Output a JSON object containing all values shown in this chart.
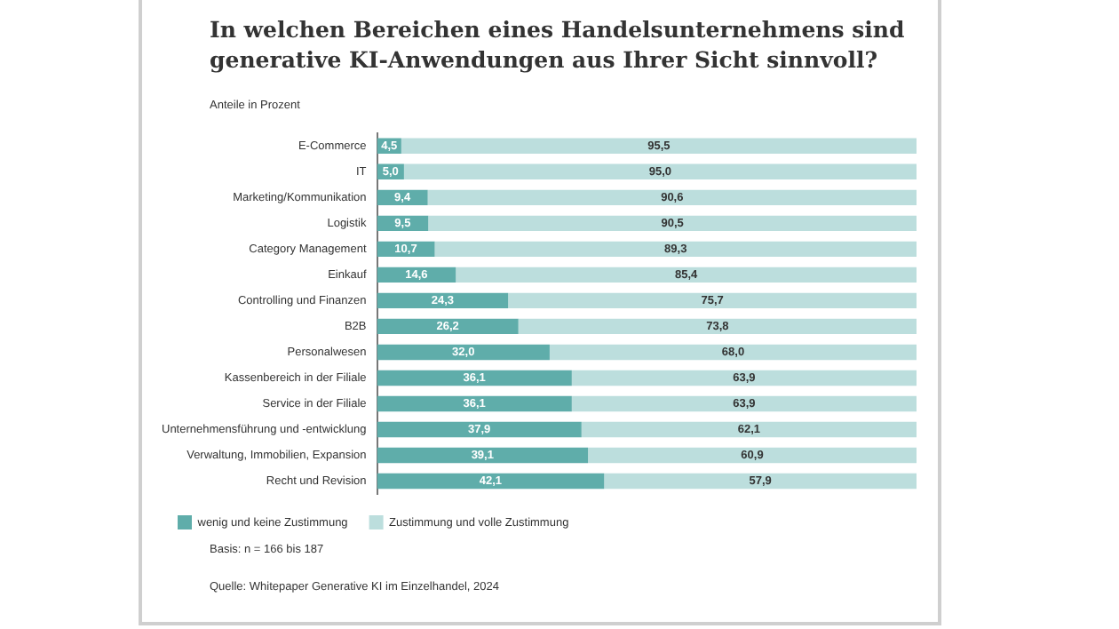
{
  "chart_data": {
    "type": "bar",
    "orientation": "horizontal",
    "stacked": true,
    "title": "In welchen Bereichen eines Handelsunternehmens sind generative KI-Anwendungen aus Ihrer Sicht sinnvoll?",
    "subtitle": "Anteile in Prozent",
    "categories": [
      "E-Commerce",
      "IT",
      "Marketing/Kommunikation",
      "Logistik",
      "Category Management",
      "Einkauf",
      "Controlling und Finanzen",
      "B2B",
      "Personalwesen",
      "Kassenbereich in der Filiale",
      "Service in der Filiale",
      "Unternehmensführung und -entwicklung",
      "Verwaltung, Immobilien, Expansion",
      "Recht und Revision"
    ],
    "series": [
      {
        "name": "wenig und keine Zustimmung",
        "color": "#5fadaa",
        "values": [
          4.5,
          5.0,
          9.4,
          9.5,
          10.7,
          14.6,
          24.3,
          26.2,
          32.0,
          36.1,
          36.1,
          37.9,
          39.1,
          42.1
        ],
        "value_labels": [
          "4,5",
          "5,0",
          "9,4",
          "9,5",
          "10,7",
          "14,6",
          "24,3",
          "26,2",
          "32,0",
          "36,1",
          "36,1",
          "37,9",
          "39,1",
          "42,1"
        ]
      },
      {
        "name": "Zustimmung und volle Zustimmung",
        "color": "#bcdedd",
        "values": [
          95.5,
          95.0,
          90.6,
          90.5,
          89.3,
          85.4,
          75.7,
          73.8,
          68.0,
          63.9,
          63.9,
          62.1,
          60.9,
          57.9
        ],
        "value_labels": [
          "95,5",
          "95,0",
          "90,6",
          "90,5",
          "89,3",
          "85,4",
          "75,7",
          "73,8",
          "68,0",
          "63,9",
          "63,9",
          "62,1",
          "60,9",
          "57,9"
        ]
      }
    ],
    "xlim": [
      0,
      100
    ],
    "tick_labels": "y",
    "legend": "bottom left",
    "annotations": [
      "Basis: n = 166 bis 187",
      "Quelle: Whitepaper Generative KI im Einzelhandel, 2024"
    ]
  }
}
